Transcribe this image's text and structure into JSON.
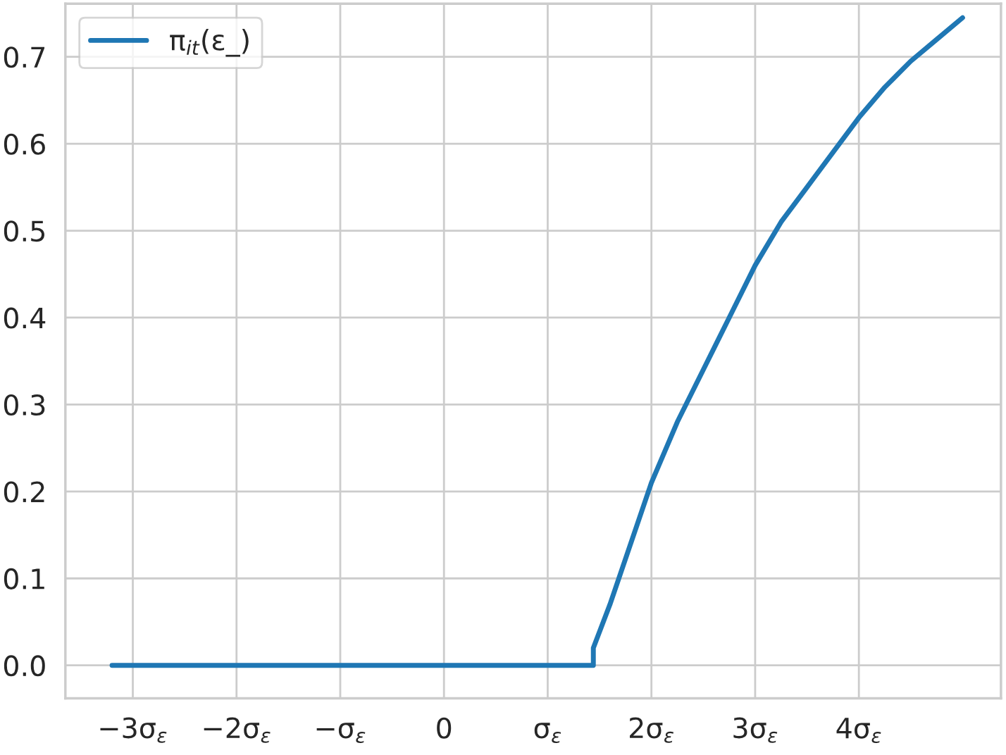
{
  "chart_data": {
    "type": "line",
    "legend": "top left",
    "grid": true,
    "xlim": [
      -3.65,
      5.37
    ],
    "ylim": [
      -0.038,
      0.761
    ],
    "xticks": [
      {
        "value": -3,
        "label": "−3σ$_{ε}$"
      },
      {
        "value": -2,
        "label": "−2σ$_{ε}$"
      },
      {
        "value": -1,
        "label": "−σ$_{ε}$"
      },
      {
        "value": 0,
        "label": "0"
      },
      {
        "value": 1,
        "label": "σ$_{ε}$"
      },
      {
        "value": 2,
        "label": "2σ$_{ε}$"
      },
      {
        "value": 3,
        "label": "3σ$_{ε}$"
      },
      {
        "value": 4,
        "label": "4σ$_{ε}$"
      }
    ],
    "yticks": [
      {
        "value": 0,
        "label": "0.0"
      },
      {
        "value": 0.1,
        "label": "0.1"
      },
      {
        "value": 0.2,
        "label": "0.2"
      },
      {
        "value": 0.3,
        "label": "0.3"
      },
      {
        "value": 0.4,
        "label": "0.4"
      },
      {
        "value": 0.5,
        "label": "0.5"
      },
      {
        "value": 0.6,
        "label": "0.6"
      },
      {
        "value": 0.7,
        "label": "0.7"
      }
    ],
    "series": [
      {
        "name": "π$_{it}$(ε_)",
        "color": "#1f77b4",
        "x": [
          -3.2,
          1.44,
          1.44,
          1.6,
          1.8,
          2.0,
          2.25,
          2.5,
          2.75,
          3.0,
          3.25,
          3.5,
          3.75,
          4.0,
          4.25,
          4.5,
          4.75,
          5.0
        ],
        "values": [
          0.0,
          0.0,
          0.02,
          0.07,
          0.14,
          0.21,
          0.28,
          0.34,
          0.4,
          0.46,
          0.51,
          0.55,
          0.59,
          0.63,
          0.665,
          0.695,
          0.72,
          0.745
        ]
      }
    ]
  }
}
